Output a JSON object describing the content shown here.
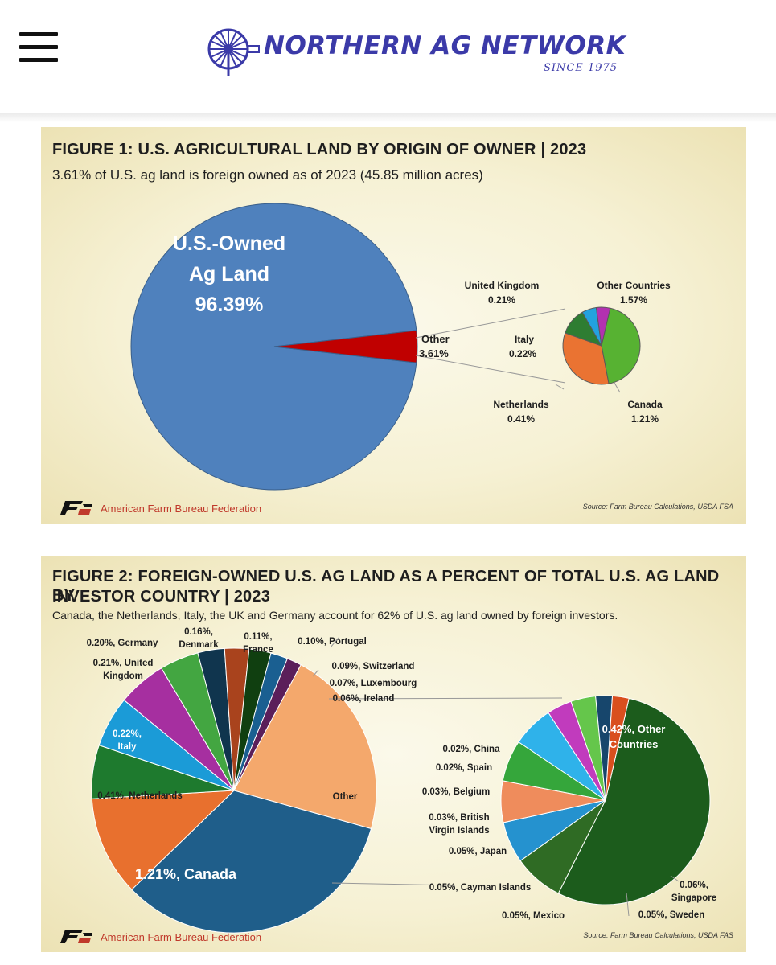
{
  "header": {
    "menu_icon": "hamburger-menu-icon",
    "logo_icon": "windmill-icon",
    "logo_text": "NORTHERN AG NETWORK",
    "logo_since": "SINCE 1975",
    "brand_color": "#3b3aa8"
  },
  "figure1": {
    "title": "FIGURE 1: U.S. AGRICULTURAL LAND BY ORIGIN OF OWNER | 2023",
    "subtitle": "3.61% of U.S. ag land is foreign owned as of 2023 (45.85 million acres)",
    "main_label_line1": "U.S.-Owned",
    "main_label_line2": "Ag Land",
    "main_label_line3": "96.39%",
    "other_label": "Other",
    "other_value": "3.61%",
    "labels": {
      "uk_name": "United Kingdom",
      "uk_value": "0.21%",
      "other_countries_name": "Other Countries",
      "other_countries_value": "1.57%",
      "italy_name": "Italy",
      "italy_value": "0.22%",
      "netherlands_name": "Netherlands",
      "netherlands_value": "0.41%",
      "canada_name": "Canada",
      "canada_value": "1.21%"
    },
    "footer_org": "American Farm Bureau Federation",
    "source": "Source: Farm Bureau Calculations, USDA FSA"
  },
  "figure2": {
    "title_line1": "FIGURE 2: FOREIGN-OWNED U.S. AG LAND AS A PERCENT OF TOTAL U.S. AG LAND BY",
    "title_line2": "INVESTOR COUNTRY | 2023",
    "subtitle": "Canada, the Netherlands, Italy, the UK and Germany account for 62% of U.S. ag land owned by foreign investors.",
    "labels": {
      "germany": "0.20%, Germany",
      "denmark_1": "0.16%,",
      "denmark_2": "Denmark",
      "france_1": "0.11%,",
      "france_2": "France",
      "portugal": "0.10%, Portugal",
      "uk_1": "0.21%, United",
      "uk_2": "Kingdom",
      "switzerland": "0.09%, Switzerland",
      "luxembourg": "0.07%, Luxembourg",
      "ireland": "0.06%, Ireland",
      "italy_1": "0.22%,",
      "italy_2": "Italy",
      "netherlands": "0.41%, Netherlands",
      "other": "Other",
      "canada": "1.21%, Canada",
      "china": "0.02%, China",
      "spain": "0.02%, Spain",
      "belgium": "0.03%, Belgium",
      "bvi_1": "0.03%, British",
      "bvi_2": "Virgin Islands",
      "japan": "0.05%, Japan",
      "cayman": "0.05%, Cayman Islands",
      "mexico": "0.05%, Mexico",
      "sweden": "0.05%, Sweden",
      "singapore_1": "0.06%,",
      "singapore_2": "Singapore",
      "other_countries_1": "0.42%, Other",
      "other_countries_2": "Countries"
    },
    "footer_org": "American Farm Bureau Federation",
    "source": "Source: Farm Bureau Calculations, USDA FAS"
  },
  "chart_data": [
    {
      "type": "pie",
      "title": "FIGURE 1: U.S. AGRICULTURAL LAND BY ORIGIN OF OWNER | 2023",
      "main_pie": {
        "categories": [
          "U.S.-Owned Ag Land",
          "Other"
        ],
        "values": [
          96.39,
          3.61
        ],
        "colors": [
          "#4f81bd",
          "#c00000"
        ]
      },
      "breakout_pie": {
        "categories": [
          "Other Countries",
          "Canada",
          "Netherlands",
          "Italy",
          "United Kingdom"
        ],
        "values": [
          1.57,
          1.21,
          0.41,
          0.22,
          0.21
        ],
        "colors": [
          "#57b232",
          "#ea7332",
          "#2e7d32",
          "#23a2de",
          "#b331b0"
        ]
      }
    },
    {
      "type": "pie",
      "title": "FIGURE 2: FOREIGN-OWNED U.S. AG LAND AS A PERCENT OF TOTAL U.S. AG LAND BY INVESTOR COUNTRY | 2023",
      "main_pie": {
        "categories": [
          "Other",
          "Canada",
          "Netherlands",
          "Italy",
          "United Kingdom",
          "Germany",
          "Denmark",
          "France",
          "Portugal",
          "Switzerland",
          "Luxembourg",
          "Ireland"
        ],
        "values": [
          0.78,
          1.21,
          0.41,
          0.22,
          0.21,
          0.2,
          0.16,
          0.11,
          0.1,
          0.09,
          0.07,
          0.06
        ],
        "colors": [
          "#f4a86c",
          "#1f5e8a",
          "#e8702e",
          "#1e7a2e",
          "#1b9bd7",
          "#a62fa0",
          "#43a641",
          "#10354e",
          "#a9431d",
          "#103f10",
          "#1a5f91",
          "#5b1f5a"
        ]
      },
      "breakout_pie": {
        "categories": [
          "Other Countries",
          "Singapore",
          "Sweden",
          "Mexico",
          "Cayman Islands",
          "Japan",
          "British Virgin Islands",
          "Belgium",
          "Spain",
          "China"
        ],
        "values": [
          0.42,
          0.06,
          0.05,
          0.05,
          0.05,
          0.05,
          0.03,
          0.03,
          0.02,
          0.02
        ],
        "colors": [
          "#1c5c1c",
          "#2f6b24",
          "#2592cf",
          "#ef8c5c",
          "#35a63b",
          "#2fb2ea",
          "#c13bbd",
          "#65c64b",
          "#17466c",
          "#d94f1e"
        ]
      }
    }
  ]
}
